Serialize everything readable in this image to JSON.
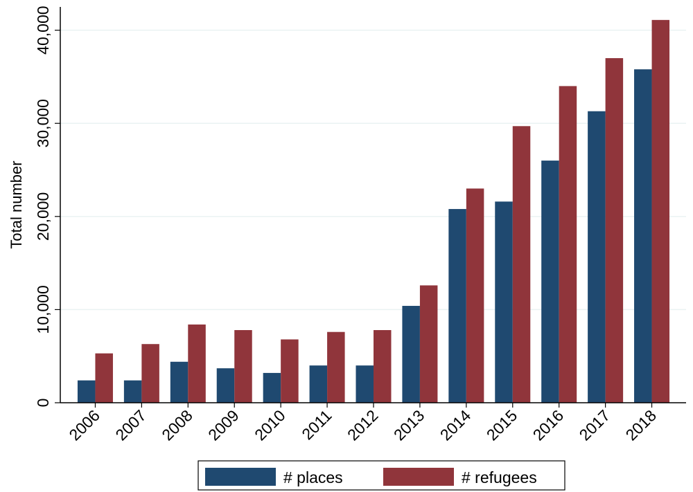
{
  "chart_data": {
    "type": "bar",
    "title": "",
    "xlabel": "",
    "ylabel": "Total number",
    "ylim": [
      0,
      42500
    ],
    "yticks": [
      0,
      10000,
      20000,
      30000,
      40000
    ],
    "ytick_labels": [
      "0",
      "10,000",
      "20,000",
      "30,000",
      "40,000"
    ],
    "grid": true,
    "legend_position": "bottom",
    "categories": [
      "2006",
      "2007",
      "2008",
      "2009",
      "2010",
      "2011",
      "2012",
      "2013",
      "2014",
      "2015",
      "2016",
      "2017",
      "2018"
    ],
    "series": [
      {
        "name": "# places",
        "color": "#1f4970",
        "values": [
          2400,
          2400,
          4400,
          3700,
          3200,
          4000,
          4000,
          10400,
          20800,
          21600,
          26000,
          31300,
          35800
        ]
      },
      {
        "name": "# refugees",
        "color": "#90353b",
        "values": [
          5300,
          6300,
          8400,
          7800,
          6800,
          7600,
          7800,
          12600,
          23000,
          29700,
          34000,
          37000,
          41100
        ]
      }
    ]
  }
}
